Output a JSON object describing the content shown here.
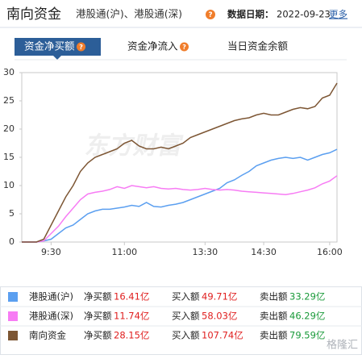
{
  "header": {
    "title": "南向资金",
    "subtitle": "港股通(沪)、港股通(深)",
    "help": "?",
    "date_label": "数据日期：",
    "date": "2022-09-23",
    "more": "更多"
  },
  "tabs": [
    {
      "label": "资金净买额",
      "help": "?"
    },
    {
      "label": "资金净流入",
      "help": "?"
    },
    {
      "label": "当日资金余额"
    }
  ],
  "chart_data": {
    "type": "line",
    "watermark": "东方财富",
    "categories": [
      null,
      null,
      null,
      null,
      "9:30",
      null,
      null,
      null,
      null,
      null,
      null,
      null,
      null,
      null,
      "11:00",
      null,
      null,
      null,
      null,
      null,
      null,
      null,
      null,
      null,
      null,
      "13:30",
      null,
      null,
      null,
      null,
      null,
      null,
      null,
      "14:30",
      null,
      null,
      null,
      null,
      null,
      null,
      null,
      null,
      "16:00",
      null
    ],
    "series": [
      {
        "name": "港股通(沪)",
        "color": "#5b9ff0",
        "values": [
          0,
          0,
          0,
          0.2,
          0.5,
          1.5,
          2.5,
          3,
          4,
          5,
          5.5,
          5.8,
          5.8,
          6,
          6.2,
          6.5,
          6.3,
          7,
          6.3,
          6.2,
          6.5,
          6.7,
          7,
          7.5,
          8,
          8.5,
          9,
          9.5,
          10.5,
          11,
          11.8,
          12.5,
          13.5,
          14,
          14.5,
          14.8,
          15,
          14.8,
          15,
          14.5,
          15,
          15.5,
          15.8,
          16.41
        ]
      },
      {
        "name": "港股通(深)",
        "color": "#f77cf4",
        "values": [
          0,
          0,
          0,
          0.2,
          1.5,
          2.8,
          4.5,
          6,
          7.5,
          8.5,
          8.8,
          9,
          9.3,
          9.8,
          9.5,
          10,
          9.8,
          9.6,
          9.8,
          9.5,
          9.4,
          9.5,
          9.3,
          9.2,
          9.3,
          9.5,
          9.3,
          9.2,
          9.3,
          9.2,
          9,
          8.9,
          8.8,
          8.7,
          8.6,
          8.5,
          8.4,
          8.6,
          8.9,
          9.2,
          9.6,
          10.3,
          10.8,
          11.74
        ]
      },
      {
        "name": "南向资金",
        "color": "#7d5634",
        "values": [
          0,
          0,
          0,
          0.5,
          3,
          5.5,
          8,
          10,
          12.5,
          14,
          15,
          15.5,
          16,
          16.5,
          17.5,
          18,
          17,
          16.5,
          16.5,
          16.8,
          16.5,
          17,
          17.5,
          18.5,
          19,
          19.5,
          20,
          20.5,
          21,
          21.5,
          21.8,
          22,
          22.5,
          22.8,
          22.5,
          22.5,
          23,
          23.5,
          23.8,
          23.6,
          24,
          25.5,
          26,
          28.15
        ]
      }
    ],
    "ylim": [
      0,
      30
    ],
    "yticks": [
      0,
      5,
      10,
      15,
      20,
      25,
      30
    ]
  },
  "summary": [
    {
      "net_label": "净买额",
      "net": "16.41亿",
      "buy_label": "买入额",
      "buy": "49.71亿",
      "sell_label": "卖出额",
      "sell": "33.29亿"
    },
    {
      "net_label": "净买额",
      "net": "11.74亿",
      "buy_label": "买入额",
      "buy": "58.03亿",
      "sell_label": "卖出额",
      "sell": "46.29亿"
    },
    {
      "net_label": "净买额",
      "net": "28.15亿",
      "buy_label": "买入额",
      "buy": "107.74亿",
      "sell_label": "卖出额",
      "sell": "79.59亿"
    }
  ],
  "footer_watermark": "格隆汇"
}
